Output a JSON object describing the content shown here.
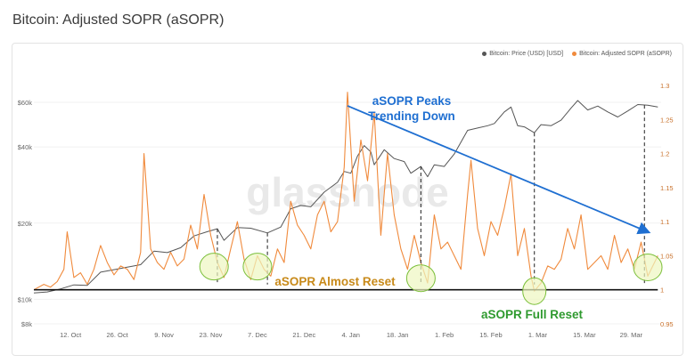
{
  "page": {
    "title": "Bitcoin: Adjusted SOPR (aSOPR)"
  },
  "legend": {
    "price": {
      "label": "Bitcoin: Price (USD) [USD]",
      "color": "#555555"
    },
    "asopr": {
      "label": "Bitcoin: Adjusted SOPR (aSOPR)",
      "color": "#f08a3c"
    }
  },
  "watermark": "glassnode",
  "annotations": {
    "peaks": [
      "aSOPR Peaks",
      "Trending Down"
    ],
    "almost_reset": "aSOPR Almost Reset",
    "full_reset": "aSOPR Full Reset"
  },
  "colors": {
    "trend": "#1f6fd1",
    "almost": "#c88a1a",
    "full": "#2f9a2f",
    "circle_fill": "#eef7c0",
    "circle_stroke": "#7bbf3a"
  },
  "chart_data": {
    "type": "line",
    "x_range": [
      "2020-10-01",
      "2021-04-07"
    ],
    "x_ticks": [
      {
        "date": "2020-10-12",
        "label": "12. Oct"
      },
      {
        "date": "2020-10-26",
        "label": "26. Oct"
      },
      {
        "date": "2020-11-09",
        "label": "9. Nov"
      },
      {
        "date": "2020-11-23",
        "label": "23. Nov"
      },
      {
        "date": "2020-12-07",
        "label": "7. Dec"
      },
      {
        "date": "2020-12-21",
        "label": "21. Dec"
      },
      {
        "date": "2021-01-04",
        "label": "4. Jan"
      },
      {
        "date": "2021-01-18",
        "label": "18. Jan"
      },
      {
        "date": "2021-02-01",
        "label": "1. Feb"
      },
      {
        "date": "2021-02-15",
        "label": "15. Feb"
      },
      {
        "date": "2021-03-01",
        "label": "1. Mar"
      },
      {
        "date": "2021-03-15",
        "label": "15. Mar"
      },
      {
        "date": "2021-03-29",
        "label": "29. Mar"
      }
    ],
    "y_left": {
      "scale": "log",
      "unit": "USD",
      "range": [
        8000,
        70000
      ],
      "ticks": [
        {
          "value": 8000,
          "label": "$8k"
        },
        {
          "value": 10000,
          "label": "$10k"
        },
        {
          "value": 20000,
          "label": "$20k"
        },
        {
          "value": 40000,
          "label": "$40k"
        },
        {
          "value": 60000,
          "label": "$60k"
        }
      ]
    },
    "y_right": {
      "scale": "linear",
      "range": [
        0.95,
        1.3
      ],
      "ticks": [
        {
          "value": 0.95,
          "label": "0.95"
        },
        {
          "value": 1,
          "label": "1"
        },
        {
          "value": 1.05,
          "label": "1.05"
        },
        {
          "value": 1.1,
          "label": "1.1"
        },
        {
          "value": 1.15,
          "label": "1.15"
        },
        {
          "value": 1.2,
          "label": "1.2"
        },
        {
          "value": 1.25,
          "label": "1.25"
        },
        {
          "value": 1.3,
          "label": "1.3"
        }
      ]
    },
    "baseline": 1,
    "series": [
      {
        "name": "Bitcoin: Price (USD) [USD]",
        "axis": "left",
        "color": "#555555",
        "points": [
          [
            "2020-10-01",
            10600
          ],
          [
            "2020-10-05",
            10700
          ],
          [
            "2020-10-09",
            11000
          ],
          [
            "2020-10-13",
            11400
          ],
          [
            "2020-10-17",
            11350
          ],
          [
            "2020-10-21",
            12800
          ],
          [
            "2020-10-25",
            13100
          ],
          [
            "2020-10-29",
            13400
          ],
          [
            "2020-11-02",
            13700
          ],
          [
            "2020-11-06",
            15500
          ],
          [
            "2020-11-10",
            15300
          ],
          [
            "2020-11-14",
            16000
          ],
          [
            "2020-11-18",
            17800
          ],
          [
            "2020-11-22",
            18500
          ],
          [
            "2020-11-25",
            19000
          ],
          [
            "2020-11-27",
            17100
          ],
          [
            "2020-12-01",
            19200
          ],
          [
            "2020-12-05",
            19100
          ],
          [
            "2020-12-10",
            18300
          ],
          [
            "2020-12-14",
            19300
          ],
          [
            "2020-12-17",
            22800
          ],
          [
            "2020-12-20",
            23500
          ],
          [
            "2020-12-23",
            23200
          ],
          [
            "2020-12-27",
            26500
          ],
          [
            "2020-12-31",
            29000
          ],
          [
            "2021-01-02",
            32000
          ],
          [
            "2021-01-04",
            31500
          ],
          [
            "2021-01-06",
            36800
          ],
          [
            "2021-01-08",
            40500
          ],
          [
            "2021-01-10",
            38200
          ],
          [
            "2021-01-11",
            34000
          ],
          [
            "2021-01-14",
            39000
          ],
          [
            "2021-01-17",
            36000
          ],
          [
            "2021-01-20",
            35000
          ],
          [
            "2021-01-22",
            31500
          ],
          [
            "2021-01-25",
            33500
          ],
          [
            "2021-01-27",
            30500
          ],
          [
            "2021-01-29",
            34000
          ],
          [
            "2021-02-01",
            33500
          ],
          [
            "2021-02-04",
            37500
          ],
          [
            "2021-02-08",
            46500
          ],
          [
            "2021-02-11",
            47500
          ],
          [
            "2021-02-14",
            48500
          ],
          [
            "2021-02-16",
            49500
          ],
          [
            "2021-02-19",
            55000
          ],
          [
            "2021-02-21",
            57500
          ],
          [
            "2021-02-23",
            48500
          ],
          [
            "2021-02-25",
            48000
          ],
          [
            "2021-02-28",
            45500
          ],
          [
            "2021-03-02",
            49000
          ],
          [
            "2021-03-05",
            48500
          ],
          [
            "2021-03-08",
            51000
          ],
          [
            "2021-03-11",
            57000
          ],
          [
            "2021-03-13",
            61000
          ],
          [
            "2021-03-16",
            56000
          ],
          [
            "2021-03-19",
            58000
          ],
          [
            "2021-03-22",
            55000
          ],
          [
            "2021-03-25",
            52500
          ],
          [
            "2021-03-28",
            55500
          ],
          [
            "2021-03-31",
            58800
          ],
          [
            "2021-04-03",
            58500
          ],
          [
            "2021-04-06",
            57500
          ]
        ]
      },
      {
        "name": "Bitcoin: Adjusted SOPR (aSOPR)",
        "axis": "right",
        "color": "#f08a3c",
        "points": [
          [
            "2020-10-01",
            1.0
          ],
          [
            "2020-10-04",
            1.008
          ],
          [
            "2020-10-06",
            1.004
          ],
          [
            "2020-10-08",
            1.012
          ],
          [
            "2020-10-10",
            1.03
          ],
          [
            "2020-10-11",
            1.085
          ],
          [
            "2020-10-13",
            1.018
          ],
          [
            "2020-10-15",
            1.025
          ],
          [
            "2020-10-17",
            1.008
          ],
          [
            "2020-10-19",
            1.03
          ],
          [
            "2020-10-21",
            1.065
          ],
          [
            "2020-10-23",
            1.04
          ],
          [
            "2020-10-25",
            1.022
          ],
          [
            "2020-10-27",
            1.035
          ],
          [
            "2020-10-29",
            1.03
          ],
          [
            "2020-10-31",
            1.015
          ],
          [
            "2020-11-02",
            1.055
          ],
          [
            "2020-11-03",
            1.2
          ],
          [
            "2020-11-05",
            1.06
          ],
          [
            "2020-11-07",
            1.04
          ],
          [
            "2020-11-09",
            1.03
          ],
          [
            "2020-11-11",
            1.055
          ],
          [
            "2020-11-13",
            1.035
          ],
          [
            "2020-11-15",
            1.045
          ],
          [
            "2020-11-17",
            1.095
          ],
          [
            "2020-11-19",
            1.06
          ],
          [
            "2020-11-21",
            1.14
          ],
          [
            "2020-11-23",
            1.08
          ],
          [
            "2020-11-25",
            1.04
          ],
          [
            "2020-11-27",
            1.018
          ],
          [
            "2020-11-29",
            1.06
          ],
          [
            "2020-12-01",
            1.1
          ],
          [
            "2020-12-03",
            1.045
          ],
          [
            "2020-12-05",
            1.015
          ],
          [
            "2020-12-07",
            1.05
          ],
          [
            "2020-12-09",
            1.03
          ],
          [
            "2020-12-11",
            1.02
          ],
          [
            "2020-12-13",
            1.06
          ],
          [
            "2020-12-15",
            1.04
          ],
          [
            "2020-12-17",
            1.13
          ],
          [
            "2020-12-19",
            1.095
          ],
          [
            "2020-12-21",
            1.08
          ],
          [
            "2020-12-23",
            1.06
          ],
          [
            "2020-12-25",
            1.11
          ],
          [
            "2020-12-27",
            1.13
          ],
          [
            "2020-12-29",
            1.085
          ],
          [
            "2020-12-31",
            1.1
          ],
          [
            "2021-01-02",
            1.18
          ],
          [
            "2021-01-03",
            1.29
          ],
          [
            "2021-01-05",
            1.13
          ],
          [
            "2021-01-07",
            1.22
          ],
          [
            "2021-01-09",
            1.16
          ],
          [
            "2021-01-11",
            1.26
          ],
          [
            "2021-01-13",
            1.08
          ],
          [
            "2021-01-15",
            1.2
          ],
          [
            "2021-01-17",
            1.11
          ],
          [
            "2021-01-19",
            1.06
          ],
          [
            "2021-01-21",
            1.03
          ],
          [
            "2021-01-23",
            1.08
          ],
          [
            "2021-01-25",
            1.04
          ],
          [
            "2021-01-27",
            1.01
          ],
          [
            "2021-01-29",
            1.11
          ],
          [
            "2021-01-31",
            1.06
          ],
          [
            "2021-02-02",
            1.07
          ],
          [
            "2021-02-04",
            1.05
          ],
          [
            "2021-02-06",
            1.03
          ],
          [
            "2021-02-08",
            1.14
          ],
          [
            "2021-02-09",
            1.19
          ],
          [
            "2021-02-11",
            1.09
          ],
          [
            "2021-02-13",
            1.05
          ],
          [
            "2021-02-15",
            1.1
          ],
          [
            "2021-02-17",
            1.08
          ],
          [
            "2021-02-19",
            1.12
          ],
          [
            "2021-02-21",
            1.17
          ],
          [
            "2021-02-23",
            1.05
          ],
          [
            "2021-02-25",
            1.09
          ],
          [
            "2021-02-27",
            1.02
          ],
          [
            "2021-02-28",
            0.998
          ],
          [
            "2021-03-02",
            1.01
          ],
          [
            "2021-03-04",
            1.035
          ],
          [
            "2021-03-06",
            1.03
          ],
          [
            "2021-03-08",
            1.045
          ],
          [
            "2021-03-10",
            1.09
          ],
          [
            "2021-03-12",
            1.06
          ],
          [
            "2021-03-14",
            1.11
          ],
          [
            "2021-03-16",
            1.03
          ],
          [
            "2021-03-18",
            1.04
          ],
          [
            "2021-03-20",
            1.05
          ],
          [
            "2021-03-22",
            1.03
          ],
          [
            "2021-03-24",
            1.08
          ],
          [
            "2021-03-26",
            1.04
          ],
          [
            "2021-03-28",
            1.06
          ],
          [
            "2021-03-30",
            1.03
          ],
          [
            "2021-04-01",
            1.07
          ],
          [
            "2021-04-03",
            1.02
          ],
          [
            "2021-04-06",
            1.05
          ]
        ]
      }
    ],
    "trend_line": {
      "from": [
        "2021-01-03",
        1.27
      ],
      "to": [
        "2021-04-03",
        1.085
      ]
    },
    "drop_lines": [
      {
        "date": "2020-11-25",
        "price": 19000
      },
      {
        "date": "2020-12-10",
        "price": 18300
      },
      {
        "date": "2021-01-25",
        "price": 33500
      },
      {
        "date": "2021-02-28",
        "price": 45500
      },
      {
        "date": "2021-04-02",
        "price": 58500
      }
    ],
    "circles": [
      {
        "date": "2020-11-24",
        "asopr": 1.034,
        "kind": "almost"
      },
      {
        "date": "2020-12-07",
        "asopr": 1.034,
        "kind": "almost"
      },
      {
        "date": "2021-01-25",
        "asopr": 1.017,
        "kind": "almost"
      },
      {
        "date": "2021-02-28",
        "asopr": 0.998,
        "kind": "full"
      },
      {
        "date": "2021-04-03",
        "asopr": 1.033,
        "kind": "almost"
      }
    ]
  }
}
